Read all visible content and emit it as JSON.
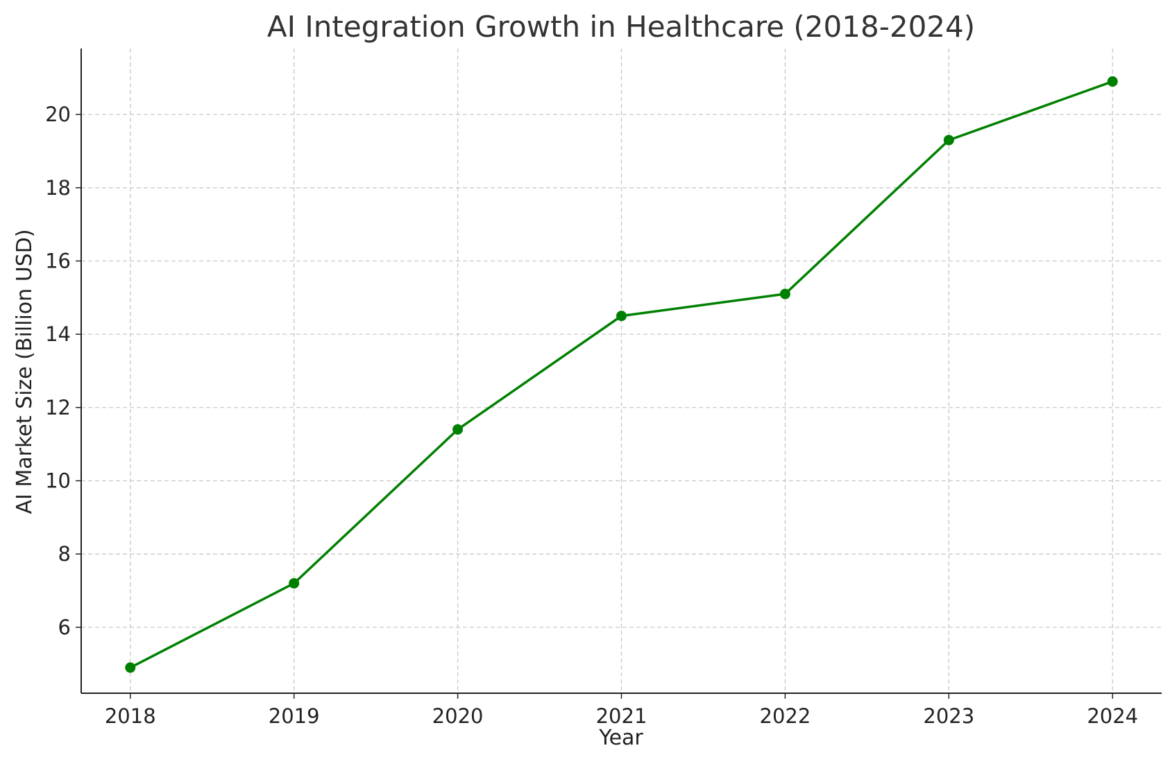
{
  "chart_data": {
    "type": "line",
    "title": "AI Integration Growth in Healthcare (2018-2024)",
    "xlabel": "Year",
    "ylabel": "AI Market Size (Billion USD)",
    "x": [
      2018,
      2019,
      2020,
      2021,
      2022,
      2023,
      2024
    ],
    "x_tick_labels": [
      "2018",
      "2019",
      "2020",
      "2021",
      "2022",
      "2023",
      "2024"
    ],
    "y_ticks": [
      6,
      8,
      10,
      12,
      14,
      16,
      18,
      20
    ],
    "y_tick_labels": [
      "6",
      "8",
      "10",
      "12",
      "14",
      "16",
      "18",
      "20"
    ],
    "series": [
      {
        "values": [
          4.9,
          7.2,
          11.4,
          14.5,
          15.1,
          19.3,
          20.9
        ],
        "color": "#008000",
        "marker": "circle"
      }
    ],
    "xlim": [
      2017.7,
      2024.3
    ],
    "ylim": [
      4.2,
      21.8
    ],
    "grid": true,
    "grid_style": "dashed",
    "legend": "none"
  }
}
